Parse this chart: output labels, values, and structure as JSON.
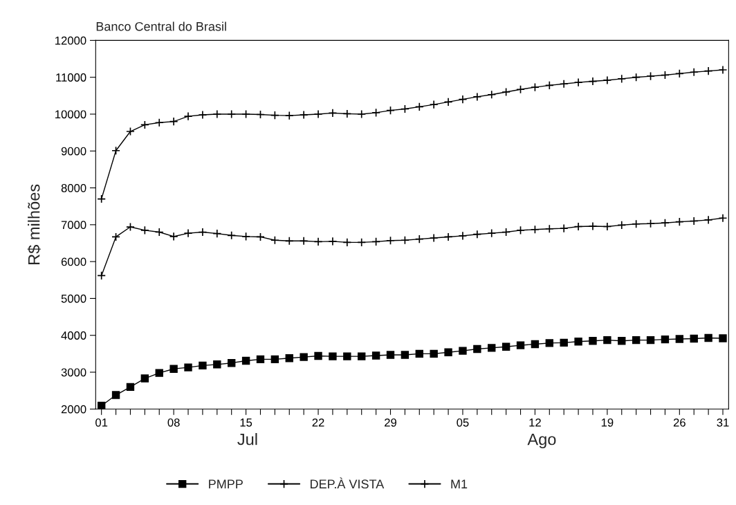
{
  "chart_data": {
    "type": "line",
    "title": "Banco Central do Brasil",
    "ylabel": "R$ milhões",
    "categories": [
      "01",
      null,
      null,
      null,
      null,
      "08",
      null,
      null,
      null,
      null,
      "15",
      null,
      null,
      null,
      null,
      "22",
      null,
      null,
      null,
      null,
      "29",
      null,
      null,
      null,
      null,
      "05",
      null,
      null,
      null,
      null,
      "12",
      null,
      null,
      null,
      null,
      "19",
      null,
      null,
      null,
      null,
      "26",
      null,
      null,
      "31"
    ],
    "series": [
      {
        "name": "PMPP",
        "color": "#000000",
        "marker": "square",
        "values": [
          2090,
          2380,
          2600,
          2830,
          2980,
          3090,
          3130,
          3180,
          3210,
          3250,
          3310,
          3350,
          3350,
          3380,
          3410,
          3440,
          3430,
          3430,
          3430,
          3450,
          3470,
          3470,
          3500,
          3500,
          3540,
          3580,
          3630,
          3660,
          3690,
          3730,
          3760,
          3790,
          3800,
          3830,
          3850,
          3870,
          3850,
          3870,
          3870,
          3890,
          3900,
          3910,
          3930,
          3920
        ]
      },
      {
        "name": "DEP.À VISTA",
        "color": "#000000",
        "marker": "cross",
        "values": [
          5620,
          6670,
          6940,
          6850,
          6800,
          6680,
          6770,
          6800,
          6760,
          6710,
          6680,
          6670,
          6580,
          6560,
          6560,
          6540,
          6550,
          6520,
          6520,
          6540,
          6570,
          6580,
          6610,
          6640,
          6670,
          6700,
          6740,
          6770,
          6800,
          6850,
          6870,
          6890,
          6900,
          6950,
          6960,
          6950,
          6990,
          7020,
          7030,
          7050,
          7080,
          7100,
          7130,
          7180
        ]
      },
      {
        "name": "M1",
        "color": "#000000",
        "marker": "cross",
        "values": [
          7700,
          9010,
          9530,
          9710,
          9770,
          9800,
          9940,
          9980,
          10000,
          10000,
          10000,
          9990,
          9970,
          9960,
          9980,
          10000,
          10030,
          10010,
          10000,
          10040,
          10100,
          10140,
          10200,
          10260,
          10330,
          10400,
          10470,
          10530,
          10600,
          10670,
          10730,
          10780,
          10820,
          10860,
          10890,
          10920,
          10960,
          11000,
          11030,
          11060,
          11100,
          11140,
          11170,
          11200
        ]
      }
    ],
    "annotations": [
      "Jul",
      "Ago"
    ],
    "ylim": [
      2000,
      12000
    ],
    "yticks": [
      2000,
      3000,
      4000,
      5000,
      6000,
      7000,
      8000,
      9000,
      10000,
      11000,
      12000
    ],
    "grid": false,
    "legend": "bottom"
  }
}
